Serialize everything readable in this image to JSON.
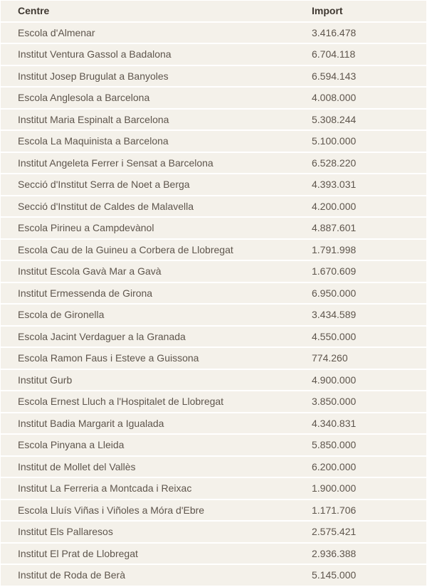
{
  "table": {
    "headers": [
      "Centre",
      "Import"
    ],
    "rows": [
      [
        "Escola d'Almenar",
        "3.416.478"
      ],
      [
        "Institut Ventura Gassol a Badalona",
        "6.704.118"
      ],
      [
        "Institut Josep Brugulat a Banyoles",
        "6.594.143"
      ],
      [
        "Escola Anglesola a Barcelona",
        "4.008.000"
      ],
      [
        "Institut Maria Espinalt a Barcelona",
        "5.308.244"
      ],
      [
        "Escola La Maquinista a Barcelona",
        "5.100.000"
      ],
      [
        "Institut Angeleta Ferrer i Sensat a Barcelona",
        "6.528.220"
      ],
      [
        "Secció d'Institut Serra de Noet a Berga",
        "4.393.031"
      ],
      [
        "Secció d'Institut de Caldes de Malavella",
        "4.200.000"
      ],
      [
        "Escola Pirineu a Campdevànol",
        "4.887.601"
      ],
      [
        "Escola Cau de la Guineu a Corbera de Llobregat",
        "1.791.998"
      ],
      [
        "Institut Escola Gavà Mar a Gavà",
        "1.670.609"
      ],
      [
        "Institut Ermessenda de Girona",
        "6.950.000"
      ],
      [
        "Escola de Gironella",
        "3.434.589"
      ],
      [
        "Escola Jacint Verdaguer a la Granada",
        "4.550.000"
      ],
      [
        "Escola Ramon Faus i Esteve a Guissona",
        "774.260"
      ],
      [
        "Institut Gurb",
        "4.900.000"
      ],
      [
        "Escola Ernest Lluch a l'Hospitalet de Llobregat",
        "3.850.000"
      ],
      [
        "Institut Badia Margarit a Igualada",
        "4.340.831"
      ],
      [
        "Escola Pinyana a Lleida",
        "5.850.000"
      ],
      [
        "Institut de Mollet del Vallès",
        "6.200.000"
      ],
      [
        "Institut La Ferreria a Montcada i Reixac",
        "1.900.000"
      ],
      [
        "Escola Lluís Viñas i Viñoles a Móra d'Ebre",
        "1.171.706"
      ],
      [
        "Institut Els Pallaresos",
        "2.575.421"
      ],
      [
        "Institut El Prat de Llobregat",
        "2.936.388"
      ],
      [
        "Institut de Roda de Berà",
        "5.145.000"
      ]
    ]
  }
}
